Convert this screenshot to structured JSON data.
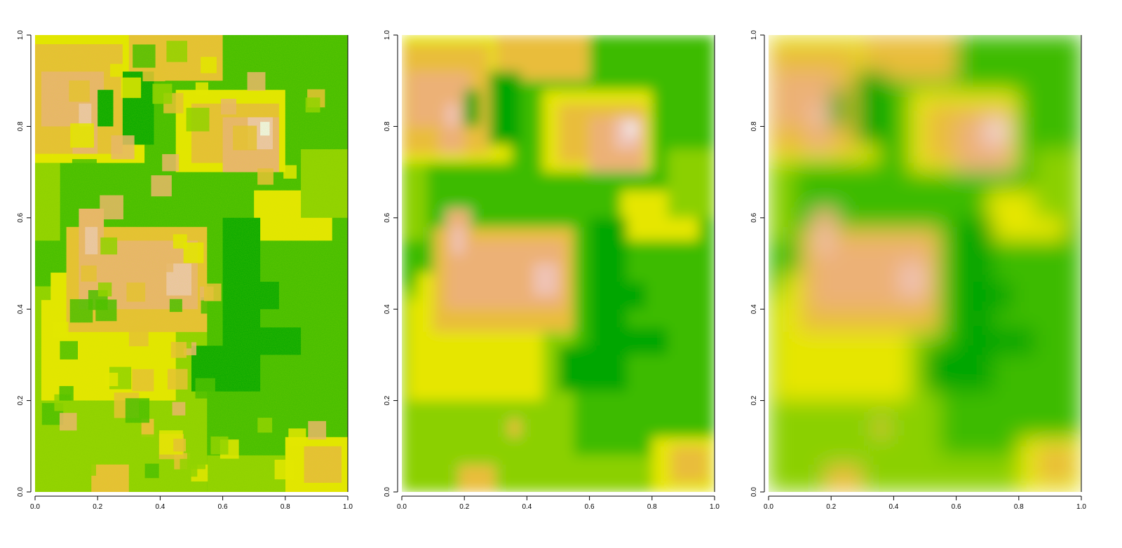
{
  "chart_data": [
    {
      "type": "heatmap",
      "title": "",
      "xlabel": "",
      "ylabel": "",
      "xlim": [
        0,
        1
      ],
      "ylim": [
        0,
        1
      ],
      "x_ticks": [
        "0.0",
        "0.2",
        "0.4",
        "0.6",
        "0.8",
        "1.0"
      ],
      "y_ticks": [
        "0.0",
        "0.2",
        "0.4",
        "0.6",
        "0.8",
        "1.0"
      ],
      "colormap": "terrain",
      "style": "blocky-noisy",
      "grid": false,
      "legend": "none"
    },
    {
      "type": "heatmap",
      "title": "",
      "xlabel": "",
      "ylabel": "",
      "xlim": [
        0,
        1
      ],
      "ylim": [
        0,
        1
      ],
      "x_ticks": [
        "0.0",
        "0.2",
        "0.4",
        "0.6",
        "0.8",
        "1.0"
      ],
      "y_ticks": [
        "0.0",
        "0.2",
        "0.4",
        "0.6",
        "0.8",
        "1.0"
      ],
      "colormap": "terrain",
      "style": "smoothed",
      "grid": false,
      "legend": "none"
    },
    {
      "type": "heatmap",
      "title": "",
      "xlabel": "",
      "ylabel": "",
      "xlim": [
        0,
        1
      ],
      "ylim": [
        0,
        1
      ],
      "x_ticks": [
        "0.0",
        "0.2",
        "0.4",
        "0.6",
        "0.8",
        "1.0"
      ],
      "y_ticks": [
        "0.0",
        "0.2",
        "0.4",
        "0.6",
        "0.8",
        "1.0"
      ],
      "colormap": "terrain",
      "style": "strongly-smoothed",
      "grid": false,
      "legend": "none"
    }
  ],
  "colors": {
    "dark_green": "#00A600",
    "green": "#3EBB00",
    "light_green": "#8BD000",
    "yellow": "#E6E600",
    "tan": "#E9BD3A",
    "peach": "#ECB176",
    "pink": "#EFC2B3",
    "white": "#F2F2F2"
  }
}
